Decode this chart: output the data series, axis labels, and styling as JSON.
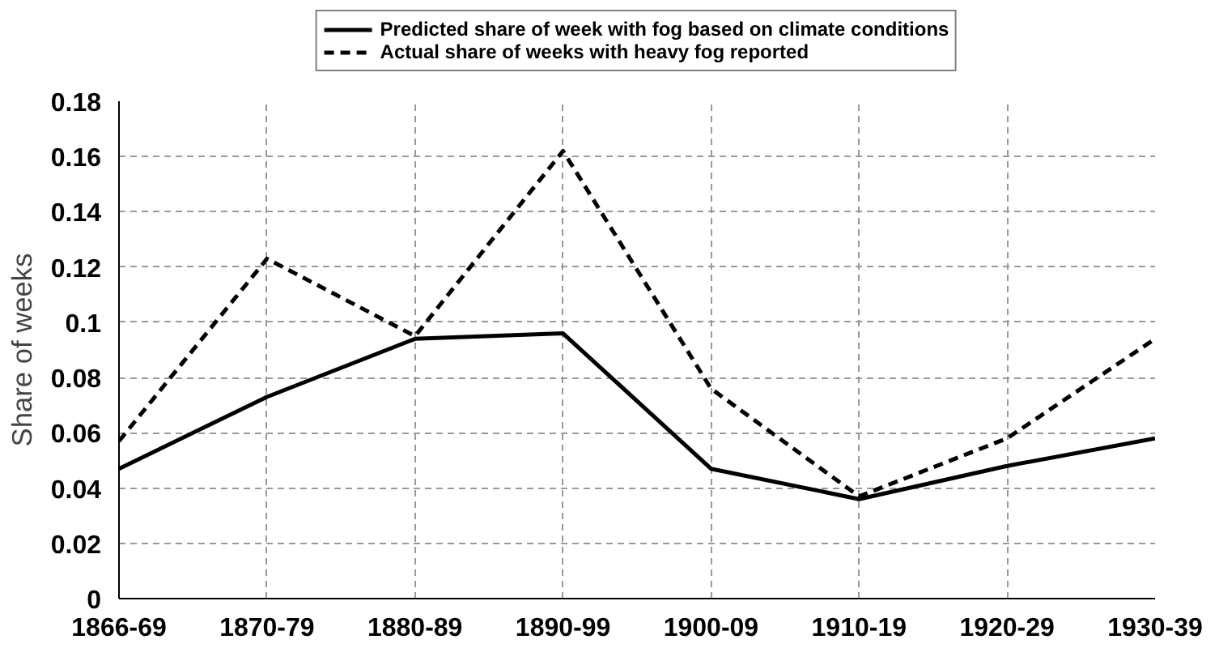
{
  "chart_data": {
    "type": "line",
    "ylabel": "Share of weeks",
    "categories": [
      "1866-69",
      "1870-79",
      "1880-89",
      "1890-99",
      "1900-09",
      "1910-19",
      "1920-29",
      "1930-39"
    ],
    "series": [
      {
        "name": "Predicted share of week with fog based on climate conditions",
        "color": "#000000",
        "line_style": "solid",
        "values": [
          0.047,
          0.073,
          0.094,
          0.096,
          0.047,
          0.036,
          0.048,
          0.058
        ]
      },
      {
        "name": "Actual share of weeks with heavy fog reported",
        "color": "#000000",
        "line_style": "dashed",
        "values": [
          0.057,
          0.123,
          0.095,
          0.162,
          0.076,
          0.037,
          0.058,
          0.094
        ]
      }
    ],
    "ylim": [
      0,
      0.18
    ],
    "yticks": [
      0,
      0.02,
      0.04,
      0.06,
      0.08,
      0.1,
      0.12,
      0.14,
      0.16,
      0.18
    ],
    "grid": true,
    "legend": "top",
    "marker": "none"
  }
}
